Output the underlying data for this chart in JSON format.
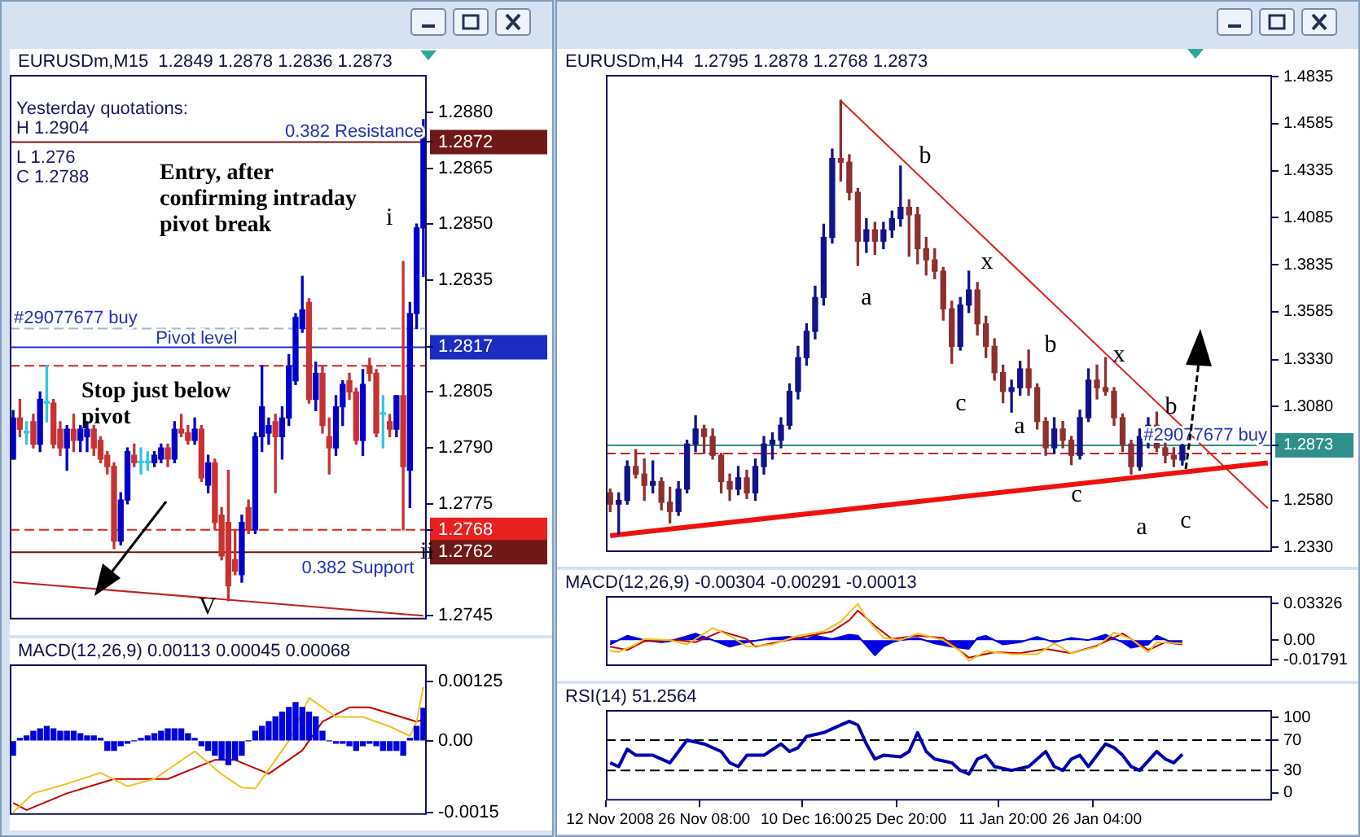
{
  "chart_data": [
    {
      "type": "candlestick",
      "title": "EURUSDm,M15  1.2849 1.2878 1.2836 1.2873",
      "categories": [
        null,
        null,
        null,
        null,
        null,
        null,
        null,
        null,
        null,
        null,
        null,
        null,
        null,
        null,
        null,
        null,
        null,
        null,
        null,
        null,
        null,
        null,
        null,
        null,
        null,
        null,
        null,
        null,
        null,
        null,
        null,
        null,
        null,
        null,
        null,
        null,
        null,
        null,
        null,
        null,
        null,
        null,
        null,
        null,
        null,
        null,
        null,
        null,
        null,
        null,
        null,
        null,
        null,
        null,
        null,
        null,
        null,
        null,
        null,
        null,
        null,
        null
      ],
      "ohlc": [
        [
          1.2787,
          1.28,
          1.2787,
          1.2798
        ],
        [
          1.2798,
          1.2803,
          1.2793,
          1.2795
        ],
        [
          1.2794,
          1.2797,
          1.2791,
          1.2794
        ],
        [
          1.2797,
          1.2799,
          1.279,
          1.2791
        ],
        [
          1.2791,
          1.2805,
          1.2789,
          1.2803
        ],
        [
          1.2802,
          1.2812,
          1.2797,
          1.2802
        ],
        [
          1.2802,
          1.2803,
          1.279,
          1.2791
        ],
        [
          1.2795,
          1.2797,
          1.2788,
          1.279
        ],
        [
          1.279,
          1.2796,
          1.2784,
          1.2795
        ],
        [
          1.2795,
          1.2799,
          1.2789,
          1.2792
        ],
        [
          1.2792,
          1.2796,
          1.2789,
          1.2795
        ],
        [
          1.2793,
          1.2797,
          1.2789,
          1.2795
        ],
        [
          1.2795,
          1.2796,
          1.2788,
          1.279
        ],
        [
          1.2792,
          1.2793,
          1.2786,
          1.2787
        ],
        [
          1.2788,
          1.2789,
          1.2783,
          1.2785
        ],
        [
          1.2785,
          1.2786,
          1.2763,
          1.2765
        ],
        [
          1.2765,
          1.2778,
          1.2764,
          1.2776
        ],
        [
          1.2776,
          1.279,
          1.2775,
          1.2789
        ],
        [
          1.2788,
          1.2791,
          1.2785,
          1.2786
        ],
        [
          1.2786,
          1.279,
          1.2783,
          1.2786
        ],
        [
          1.2786,
          1.2789,
          1.2784,
          1.2786
        ],
        [
          1.2786,
          1.2789,
          1.2785,
          1.2788
        ],
        [
          1.2787,
          1.2791,
          1.2786,
          1.279
        ],
        [
          1.279,
          1.2791,
          1.2785,
          1.2787
        ],
        [
          1.2787,
          1.2797,
          1.2786,
          1.2795
        ],
        [
          1.2795,
          1.2799,
          1.2793,
          1.2794
        ],
        [
          1.2794,
          1.2796,
          1.2791,
          1.2792
        ],
        [
          1.2792,
          1.2798,
          1.2791,
          1.2795
        ],
        [
          1.2795,
          1.2796,
          1.2781,
          1.2782
        ],
        [
          1.278,
          1.2788,
          1.2778,
          1.2786
        ],
        [
          1.2786,
          1.2787,
          1.2768,
          1.277
        ],
        [
          1.2772,
          1.2774,
          1.276,
          1.2761
        ],
        [
          1.277,
          1.2784,
          1.2749,
          1.2753
        ],
        [
          1.276,
          1.2768,
          1.2756,
          1.2757
        ],
        [
          1.2756,
          1.2772,
          1.2754,
          1.277
        ],
        [
          1.2774,
          1.2776,
          1.2767,
          1.2768
        ],
        [
          1.2768,
          1.2794,
          1.2767,
          1.2793
        ],
        [
          1.2793,
          1.2812,
          1.2789,
          1.2801
        ],
        [
          1.2794,
          1.2798,
          1.2791,
          1.2796
        ],
        [
          1.2797,
          1.2799,
          1.2778,
          1.2793
        ],
        [
          1.2793,
          1.2801,
          1.2787,
          1.2798
        ],
        [
          1.2798,
          1.2815,
          1.2796,
          1.2812
        ],
        [
          1.2808,
          1.2826,
          1.2807,
          1.2825
        ],
        [
          1.2822,
          1.2836,
          1.2821,
          1.2827
        ],
        [
          1.2829,
          1.283,
          1.2802,
          1.2803
        ],
        [
          1.2803,
          1.2813,
          1.28,
          1.281
        ],
        [
          1.281,
          1.2812,
          1.2794,
          1.2796
        ],
        [
          1.2793,
          1.2798,
          1.2783,
          1.279
        ],
        [
          1.279,
          1.2804,
          1.2788,
          1.2801
        ],
        [
          1.2801,
          1.2808,
          1.2796,
          1.2807
        ],
        [
          1.2808,
          1.281,
          1.2803,
          1.2805
        ],
        [
          1.2805,
          1.2806,
          1.2791,
          1.2792
        ],
        [
          1.2792,
          1.2811,
          1.2788,
          1.2807
        ],
        [
          1.2812,
          1.2814,
          1.2808,
          1.281
        ],
        [
          1.281,
          1.2811,
          1.2793,
          1.2794
        ],
        [
          1.2799,
          1.2804,
          1.279,
          1.2799
        ],
        [
          1.2797,
          1.2799,
          1.2793,
          1.2795
        ],
        [
          1.2795,
          1.2804,
          1.2793,
          1.2804
        ],
        [
          1.2804,
          1.284,
          1.2768,
          1.2785
        ],
        [
          1.2784,
          1.2829,
          1.2774,
          1.2826
        ],
        [
          1.2826,
          1.285,
          1.2822,
          1.2849
        ],
        [
          1.2849,
          1.2878,
          1.2836,
          1.2873
        ]
      ],
      "colors": [
        "#0000c8",
        "#c83232",
        "#30c8e0",
        "#c83232",
        "#0000c8",
        "#30c8e0",
        "#c83232",
        "#c83232",
        "#0000c8",
        "#c83232",
        "#0000c8",
        "#0000c8",
        "#c83232",
        "#c83232",
        "#c83232",
        "#c83232",
        "#0000c8",
        "#0000c8",
        "#c83232",
        "#30c8e0",
        "#30c8e0",
        "#0000c8",
        "#0000c8",
        "#c83232",
        "#0000c8",
        "#c83232",
        "#c83232",
        "#0000c8",
        "#c83232",
        "#0000c8",
        "#c83232",
        "#c83232",
        "#c83232",
        "#c83232",
        "#0000c8",
        "#c83232",
        "#0000c8",
        "#0000c8",
        "#0000c8",
        "#c83232",
        "#0000c8",
        "#0000c8",
        "#0000c8",
        "#0000c8",
        "#c83232",
        "#0000c8",
        "#c83232",
        "#c83232",
        "#0000c8",
        "#0000c8",
        "#c83232",
        "#c83232",
        "#0000c8",
        "#c83232",
        "#c83232",
        "#30c8e0",
        "#c83232",
        "#0000c8",
        "#c83232",
        "#0000c8",
        "#0000c8",
        "#0000c8"
      ],
      "series": [
        {
          "type": "line",
          "color": "#c02020",
          "values": [
            1.2754,
            null,
            null,
            null,
            null,
            null,
            null,
            null,
            null,
            null,
            null,
            null,
            null,
            null,
            null,
            null,
            null,
            null,
            null,
            null,
            null,
            null,
            null,
            null,
            null,
            null,
            null,
            null,
            null,
            null,
            null,
            null,
            null,
            null,
            null,
            null,
            null,
            null,
            null,
            null,
            null,
            null,
            null,
            null,
            null,
            null,
            null,
            null,
            null,
            null,
            null,
            null,
            null,
            null,
            null,
            null,
            null,
            null,
            null,
            null,
            null,
            1.2745
          ]
        }
      ],
      "ylim": [
        1.2744,
        1.289
      ],
      "yticks": [
        1.2745,
        1.2775,
        {
          "value": 1.279,
          "label": "1.2790"
        },
        1.2805,
        1.2835,
        {
          "value": 1.285,
          "label": "1.2850"
        },
        1.2865,
        {
          "value": 1.288,
          "label": "1.2880"
        },
        1.2872,
        1.2817,
        1.2768,
        1.2762
      ],
      "ref_lines": [
        {
          "axis": "y",
          "value": 1.2872,
          "label": "0.382 Resistance",
          "color": "#701818",
          "line_style": "solid"
        },
        {
          "axis": "y",
          "value": 1.2822,
          "label": "#29077677 buy",
          "color": "#a8b8c8",
          "line_style": "dashed"
        },
        {
          "axis": "y",
          "value": 1.2817,
          "label": "Pivot level",
          "color": "#1c2cc0",
          "line_style": "solid"
        },
        {
          "axis": "y",
          "value": 1.2812,
          "color": "#d02020",
          "line_style": "dashed"
        },
        {
          "axis": "y",
          "value": 1.2768,
          "color": "#e82020",
          "line_style": "dashed"
        },
        {
          "axis": "y",
          "value": 1.2762,
          "label": "0.382 Support",
          "color": "#701818",
          "line_style": "solid"
        }
      ],
      "annotations": [
        "Yesterday quotations:",
        "H 1.2904",
        "L 1.276",
        "C 1.2788",
        "Entry, after confirming intraday pivot break",
        "Stop just below pivot",
        "i",
        "ii",
        "V"
      ],
      "grid": false,
      "tick_labels": "y"
    },
    {
      "type": "bar",
      "title": "MACD(12,26,9) 0.00113 0.00045 0.00068",
      "categories": [
        null,
        null,
        null,
        null,
        null,
        null,
        null,
        null,
        null,
        null,
        null,
        null,
        null,
        null,
        null,
        null,
        null,
        null,
        null,
        null,
        null,
        null,
        null,
        null,
        null,
        null,
        null,
        null,
        null,
        null,
        null,
        null,
        null,
        null,
        null,
        null,
        null,
        null,
        null,
        null,
        null,
        null,
        null,
        null,
        null,
        null,
        null,
        null,
        null,
        null,
        null,
        null,
        null,
        null,
        null,
        null,
        null,
        null,
        null,
        null,
        null,
        null
      ],
      "series": [
        {
          "type": "bar",
          "color": "#0000e0",
          "values": [
            -0.0003,
            5e-05,
            0.0001,
            0.0002,
            0.00025,
            0.0003,
            0.00025,
            0.0002,
            0.0002,
            0.0002,
            0.00015,
            0.0001,
            0.0001,
            5e-05,
            -0.0002,
            -0.0002,
            -0.0001,
            -5e-05,
            0,
            5e-05,
            0.0001,
            0.00015,
            0.0002,
            0.00025,
            0.00025,
            0.00025,
            0.00015,
            5e-05,
            -0.0001,
            -0.0002,
            -0.0003,
            -0.0004,
            -0.0005,
            -0.0004,
            -0.0003,
            0,
            0.0002,
            0.0003,
            0.0004,
            0.0005,
            0.0006,
            0.0007,
            0.0008,
            0.0007,
            0.0006,
            0.0005,
            0.0002,
            0,
            -5e-05,
            -5e-05,
            -0.0001,
            -0.0002,
            -0.0001,
            -5e-05,
            -0.0001,
            -0.0002,
            -0.0002,
            -0.0002,
            -0.0003,
            5e-05,
            0.0003,
            0.00068
          ]
        },
        {
          "type": "line",
          "color": "#f0c020",
          "values": [
            -0.0015,
            null,
            null,
            -0.0011,
            null,
            null,
            null,
            null,
            -0.0009,
            null,
            null,
            null,
            null,
            -0.00067,
            null,
            null,
            null,
            -0.00095,
            null,
            null,
            null,
            -0.0008,
            null,
            null,
            null,
            null,
            null,
            -0.00022,
            null,
            null,
            null,
            -0.0007,
            null,
            null,
            -0.00098,
            null,
            -0.001,
            null,
            null,
            -0.0004,
            null,
            0,
            null,
            null,
            0.0009,
            null,
            null,
            null,
            0.0005,
            null,
            null,
            null,
            0.0005,
            null,
            null,
            null,
            0.0003,
            null,
            null,
            0.0001,
            0.0004,
            0.00113
          ]
        },
        {
          "type": "line",
          "color": "#c00000",
          "values": [
            -0.0013,
            null,
            -0.00145,
            null,
            null,
            null,
            null,
            null,
            -0.0011,
            null,
            null,
            null,
            null,
            null,
            null,
            -0.0008,
            null,
            null,
            null,
            null,
            null,
            null,
            null,
            -0.0008,
            null,
            null,
            null,
            null,
            null,
            null,
            -0.0004,
            null,
            null,
            -0.0004,
            null,
            null,
            null,
            null,
            -0.00069,
            null,
            null,
            null,
            null,
            -0.0002,
            null,
            null,
            0.0004,
            null,
            null,
            null,
            0.0007,
            null,
            null,
            0.0007,
            null,
            null,
            null,
            null,
            null,
            null,
            0.0004,
            0.00045
          ]
        }
      ],
      "ylim": [
        -0.00155,
        0.0016
      ],
      "yticks": [
        0.00125,
        {
          "value": 0,
          "label": "0.00"
        },
        -0.0015
      ],
      "grid": false,
      "tick_labels": "y"
    },
    {
      "type": "candlestick",
      "title": "EURUSDm,H4  1.2795 1.2878 1.2768 1.2873",
      "categories": [
        null,
        null,
        null,
        null,
        null,
        null,
        null,
        null,
        null,
        null,
        null,
        null,
        null,
        null,
        null,
        null,
        null,
        null,
        null,
        null,
        null,
        null,
        null,
        null,
        null,
        null,
        null,
        null,
        null,
        null,
        null,
        null,
        null,
        null,
        null,
        null,
        null,
        null,
        null,
        null,
        null,
        null,
        null,
        null,
        null,
        null,
        null,
        null,
        null,
        null,
        null,
        null,
        null,
        null,
        null,
        null,
        null,
        null,
        null,
        null,
        null,
        null,
        null,
        null,
        null,
        null,
        null,
        null,
        null,
        null,
        null,
        null,
        null,
        null,
        null,
        null,
        null,
        null
      ],
      "ohlc": [
        [
          1.262,
          1.264,
          1.252,
          1.256
        ],
        [
          1.256,
          1.262,
          1.24,
          1.258
        ],
        [
          1.258,
          1.279,
          1.256,
          1.276
        ],
        [
          1.276,
          1.285,
          1.27,
          1.272
        ],
        [
          1.272,
          1.28,
          1.258,
          1.266
        ],
        [
          1.266,
          1.279,
          1.262,
          1.268
        ],
        [
          1.268,
          1.27,
          1.253,
          1.257
        ],
        [
          1.257,
          1.265,
          1.246,
          1.252
        ],
        [
          1.252,
          1.268,
          1.25,
          1.264
        ],
        [
          1.264,
          1.29,
          1.262,
          1.288
        ],
        [
          1.288,
          1.303,
          1.284,
          1.296
        ],
        [
          1.296,
          1.298,
          1.283,
          1.292
        ],
        [
          1.292,
          1.296,
          1.28,
          1.282
        ],
        [
          1.282,
          1.283,
          1.262,
          1.268
        ],
        [
          1.268,
          1.272,
          1.258,
          1.264
        ],
        [
          1.264,
          1.276,
          1.261,
          1.27
        ],
        [
          1.27,
          1.274,
          1.259,
          1.262
        ],
        [
          1.262,
          1.28,
          1.258,
          1.276
        ],
        [
          1.276,
          1.292,
          1.272,
          1.288
        ],
        [
          1.288,
          1.294,
          1.28,
          1.29
        ],
        [
          1.29,
          1.302,
          1.286,
          1.298
        ],
        [
          1.298,
          1.32,
          1.296,
          1.316
        ],
        [
          1.316,
          1.34,
          1.312,
          1.334
        ],
        [
          1.334,
          1.352,
          1.33,
          1.348
        ],
        [
          1.348,
          1.372,
          1.344,
          1.366
        ],
        [
          1.366,
          1.405,
          1.362,
          1.398
        ],
        [
          1.398,
          1.445,
          1.395,
          1.44
        ],
        [
          1.44,
          1.471,
          1.428,
          1.438
        ],
        [
          1.438,
          1.442,
          1.418,
          1.422
        ],
        [
          1.422,
          1.424,
          1.383,
          1.396
        ],
        [
          1.396,
          1.408,
          1.39,
          1.402
        ],
        [
          1.402,
          1.406,
          1.389,
          1.396
        ],
        [
          1.396,
          1.406,
          1.392,
          1.402
        ],
        [
          1.402,
          1.412,
          1.398,
          1.408
        ],
        [
          1.408,
          1.436,
          1.404,
          1.414
        ],
        [
          1.414,
          1.418,
          1.388,
          1.41
        ],
        [
          1.41,
          1.414,
          1.384,
          1.392
        ],
        [
          1.392,
          1.398,
          1.378,
          1.386
        ],
        [
          1.386,
          1.392,
          1.376,
          1.38
        ],
        [
          1.38,
          1.382,
          1.354,
          1.36
        ],
        [
          1.36,
          1.364,
          1.331,
          1.34
        ],
        [
          1.34,
          1.366,
          1.338,
          1.362
        ],
        [
          1.362,
          1.38,
          1.358,
          1.37
        ],
        [
          1.37,
          1.374,
          1.346,
          1.352
        ],
        [
          1.352,
          1.356,
          1.334,
          1.34
        ],
        [
          1.34,
          1.344,
          1.322,
          1.326
        ],
        [
          1.326,
          1.33,
          1.31,
          1.316
        ],
        [
          1.316,
          1.322,
          1.305,
          1.318
        ],
        [
          1.318,
          1.332,
          1.314,
          1.328
        ],
        [
          1.328,
          1.338,
          1.314,
          1.318
        ],
        [
          1.318,
          1.32,
          1.296,
          1.3
        ],
        [
          1.3,
          1.302,
          1.282,
          1.286
        ],
        [
          1.286,
          1.302,
          1.283,
          1.296
        ],
        [
          1.296,
          1.3,
          1.286,
          1.29
        ],
        [
          1.29,
          1.292,
          1.277,
          1.282
        ],
        [
          1.282,
          1.306,
          1.28,
          1.302
        ],
        [
          1.302,
          1.328,
          1.3,
          1.322
        ],
        [
          1.322,
          1.33,
          1.312,
          1.318
        ],
        [
          1.318,
          1.334,
          1.314,
          1.316
        ],
        [
          1.316,
          1.318,
          1.298,
          1.302
        ],
        [
          1.302,
          1.304,
          1.284,
          1.288
        ],
        [
          1.288,
          1.29,
          1.272,
          1.276
        ],
        [
          1.276,
          1.296,
          1.274,
          1.292
        ],
        [
          1.292,
          1.302,
          1.286,
          1.298
        ],
        [
          1.298,
          1.305,
          1.284,
          1.286
        ],
        [
          1.286,
          1.29,
          1.278,
          1.282
        ],
        [
          1.282,
          1.286,
          1.276,
          1.28
        ],
        [
          1.2795,
          1.2878,
          1.2768,
          1.2873
        ],
        null,
        null,
        null,
        null,
        null,
        null,
        null,
        null,
        null,
        null
      ],
      "colors": [
        "#8c3030",
        "#12128a",
        "#12128a",
        "#8c3030",
        "#8c3030",
        "#12128a",
        "#8c3030",
        "#8c3030",
        "#12128a",
        "#12128a",
        "#12128a",
        "#8c3030",
        "#8c3030",
        "#8c3030",
        "#8c3030",
        "#12128a",
        "#8c3030",
        "#12128a",
        "#12128a",
        "#12128a",
        "#12128a",
        "#12128a",
        "#12128a",
        "#12128a",
        "#12128a",
        "#12128a",
        "#12128a",
        "#8c3030",
        "#8c3030",
        "#8c3030",
        "#12128a",
        "#8c3030",
        "#12128a",
        "#12128a",
        "#12128a",
        "#8c3030",
        "#8c3030",
        "#8c3030",
        "#8c3030",
        "#8c3030",
        "#8c3030",
        "#12128a",
        "#12128a",
        "#8c3030",
        "#8c3030",
        "#8c3030",
        "#8c3030",
        "#12128a",
        "#12128a",
        "#8c3030",
        "#8c3030",
        "#8c3030",
        "#12128a",
        "#8c3030",
        "#8c3030",
        "#12128a",
        "#12128a",
        "#8c3030",
        "#8c3030",
        "#8c3030",
        "#8c3030",
        "#8c3030",
        "#12128a",
        "#12128a",
        "#8c3030",
        "#8c3030",
        "#8c3030",
        "#12128a",
        null,
        null,
        null,
        null,
        null,
        null,
        null,
        null,
        null,
        null
      ],
      "series": [
        {
          "type": "line",
          "color": "#ee1111",
          "values": [
            1.2392,
            null,
            null,
            null,
            null,
            null,
            null,
            null,
            null,
            null,
            null,
            null,
            null,
            null,
            null,
            null,
            null,
            null,
            null,
            null,
            null,
            null,
            null,
            null,
            null,
            null,
            null,
            null,
            null,
            null,
            null,
            null,
            null,
            null,
            null,
            null,
            null,
            null,
            null,
            null,
            null,
            null,
            null,
            null,
            null,
            null,
            null,
            null,
            null,
            null,
            null,
            null,
            null,
            null,
            null,
            null,
            null,
            null,
            null,
            null,
            null,
            null,
            null,
            null,
            null,
            null,
            null,
            null,
            null,
            null,
            null,
            null,
            null,
            null,
            null,
            null,
            null,
            1.278
          ]
        },
        {
          "type": "line",
          "color": "#dd2222",
          "values": [
            null,
            null,
            null,
            null,
            null,
            null,
            null,
            null,
            null,
            null,
            null,
            null,
            null,
            null,
            null,
            null,
            null,
            null,
            null,
            null,
            null,
            null,
            null,
            null,
            null,
            null,
            null,
            1.4707,
            null,
            null,
            null,
            null,
            null,
            null,
            null,
            null,
            null,
            null,
            null,
            null,
            null,
            null,
            null,
            null,
            null,
            null,
            null,
            null,
            null,
            null,
            null,
            null,
            null,
            null,
            null,
            null,
            null,
            null,
            null,
            null,
            null,
            null,
            null,
            null,
            null,
            null,
            null,
            null,
            null,
            null,
            null,
            null,
            null,
            null,
            null,
            null,
            null,
            1.2538
          ]
        }
      ],
      "ylim": [
        1.2305,
        1.4845
      ],
      "yticks": [
        1.4835,
        1.4585,
        1.4335,
        1.4085,
        1.3835,
        1.3585,
        {
          "value": 1.333,
          "label": "1.3330"
        },
        {
          "value": 1.308,
          "label": "1.3080"
        },
        {
          "value": 1.258,
          "label": "1.2580"
        },
        {
          "value": 1.233,
          "label": "1.2330"
        },
        1.2873
      ],
      "ref_lines": [
        {
          "axis": "y",
          "value": 1.2873,
          "label": "#29077677 buy",
          "color": "#2f8f8a",
          "line_style": "solid"
        },
        {
          "axis": "y",
          "value": 1.283,
          "color": "#d02020",
          "line_style": "dashed"
        }
      ],
      "annotations": [
        "a",
        "b",
        "x",
        "c",
        "b",
        "a",
        "x",
        "c",
        "b",
        "a",
        "c"
      ],
      "grid": false,
      "tick_labels": "y"
    },
    {
      "type": "area",
      "title": "MACD(12,26,9) -0.00304 -0.00291 -0.00013",
      "categories": [
        null,
        null,
        null,
        null,
        null,
        null,
        null,
        null,
        null,
        null,
        null,
        null,
        null,
        null,
        null,
        null,
        null,
        null,
        null,
        null,
        null,
        null,
        null,
        null,
        null,
        null,
        null,
        null,
        null,
        null,
        null,
        null,
        null,
        null,
        null,
        null,
        null,
        null,
        null,
        null,
        null,
        null,
        null,
        null,
        null,
        null,
        null,
        null,
        null,
        null,
        null,
        null,
        null,
        null,
        null,
        null,
        null,
        null,
        null,
        null,
        null,
        null,
        null,
        null,
        null,
        null,
        null,
        null,
        null,
        null,
        null,
        null,
        null,
        null,
        null,
        null,
        null,
        null
      ],
      "series": [
        {
          "type": "area",
          "color": "#0000e0",
          "values": [
            -0.004,
            null,
            0.004,
            null,
            0,
            null,
            -0.002,
            -0.001,
            null,
            null,
            0.006,
            null,
            0,
            null,
            -0.006,
            null,
            -0.002,
            null,
            null,
            0.002,
            null,
            0.003,
            null,
            0.001,
            0.004,
            null,
            0.001,
            null,
            0.005,
            0.004,
            -0.005,
            -0.014,
            -0.006,
            -0.002,
            0,
            null,
            0.002,
            null,
            -0.003,
            null,
            -0.006,
            null,
            -0.008,
            0.002,
            0.004,
            null,
            -0.004,
            null,
            -0.002,
            null,
            0.003,
            null,
            -0.002,
            null,
            0.002,
            null,
            0,
            null,
            0.005,
            null,
            -0.002,
            -0.007,
            null,
            -0.004,
            0.004,
            null,
            -0.003,
            -0.00304,
            null,
            null,
            null,
            null,
            null,
            null,
            null,
            null,
            null,
            null
          ]
        },
        {
          "type": "line",
          "color": "#f0c020",
          "values": [
            -0.01,
            -0.011,
            null,
            -0.004,
            0.001,
            null,
            null,
            0,
            null,
            -0.004,
            null,
            null,
            0.011,
            null,
            0.004,
            null,
            -0.006,
            null,
            null,
            -0.004,
            null,
            null,
            0.004,
            null,
            null,
            0.008,
            null,
            0.017,
            null,
            0.033,
            0.02,
            null,
            0.002,
            null,
            0,
            null,
            0.006,
            null,
            null,
            0,
            null,
            -0.01,
            -0.019,
            null,
            -0.01,
            null,
            null,
            -0.013,
            null,
            null,
            -0.013,
            null,
            -0.003,
            null,
            -0.012,
            null,
            null,
            -0.006,
            null,
            0.007,
            null,
            0.001,
            null,
            -0.011,
            -0.002,
            null,
            null,
            -0.003,
            null,
            null,
            null,
            null,
            null,
            null,
            null,
            null,
            null,
            null
          ]
        },
        {
          "type": "line",
          "color": "#c00000",
          "values": [
            -0.006,
            null,
            -0.009,
            null,
            -0.001,
            null,
            null,
            null,
            0,
            null,
            -0.002,
            null,
            null,
            0.008,
            null,
            null,
            0.001,
            -0.006,
            null,
            null,
            null,
            null,
            0.002,
            null,
            null,
            null,
            0.008,
            null,
            0.018,
            0.027,
            null,
            0.013,
            null,
            0.001,
            null,
            null,
            0.004,
            null,
            null,
            0.002,
            null,
            null,
            -0.016,
            null,
            null,
            -0.011,
            null,
            null,
            -0.012,
            null,
            null,
            -0.008,
            null,
            null,
            -0.012,
            null,
            null,
            -0.005,
            null,
            null,
            0.006,
            null,
            null,
            -0.009,
            null,
            -0.002,
            null,
            -0.004,
            null,
            null,
            null,
            null,
            null,
            null,
            null,
            null,
            null,
            null
          ]
        }
      ],
      "ylim": [
        -0.0237,
        0.0403
      ],
      "yticks": [
        0.03326,
        {
          "value": 0,
          "label": "0.00"
        },
        -0.01791
      ],
      "grid": false,
      "tick_labels": "y"
    },
    {
      "type": "line",
      "title": "RSI(14) 51.2564",
      "categories": [
        "12 Nov 2008",
        null,
        null,
        null,
        null,
        null,
        null,
        null,
        null,
        null,
        null,
        "26 Nov 08:00",
        null,
        null,
        null,
        null,
        null,
        null,
        null,
        null,
        null,
        null,
        null,
        "10 Dec 16:00",
        null,
        null,
        null,
        null,
        null,
        null,
        null,
        null,
        null,
        null,
        "25 Dec 20:00",
        null,
        null,
        null,
        null,
        null,
        null,
        null,
        null,
        null,
        null,
        null,
        "11 Jan 20:00",
        null,
        null,
        null,
        null,
        null,
        null,
        null,
        null,
        null,
        null,
        "26 Jan 04:00",
        null,
        null,
        null,
        null,
        null,
        null,
        null,
        null,
        null,
        null,
        null,
        null,
        null,
        null,
        null,
        null,
        null,
        null,
        null,
        null
      ],
      "series": [
        {
          "color": "#0000b0",
          "values": [
            40,
            35,
            58,
            50,
            null,
            50,
            null,
            40,
            55,
            70,
            null,
            65,
            null,
            55,
            40,
            35,
            50,
            null,
            50,
            null,
            65,
            55,
            60,
            75,
            null,
            80,
            85,
            null,
            95,
            90,
            65,
            45,
            50,
            null,
            48,
            55,
            80,
            55,
            45,
            null,
            40,
            30,
            25,
            45,
            50,
            35,
            null,
            30,
            null,
            35,
            null,
            55,
            35,
            30,
            45,
            50,
            35,
            null,
            65,
            60,
            50,
            35,
            30,
            null,
            55,
            45,
            40,
            51.2564,
            null,
            null,
            null,
            null,
            null,
            null,
            null,
            null,
            null,
            null
          ]
        }
      ],
      "ylim": [
        -10,
        110
      ],
      "yticks": [
        100,
        70,
        30,
        0
      ],
      "ref_lines": [
        {
          "axis": "y",
          "value": 70,
          "line_style": "dashed"
        },
        {
          "axis": "y",
          "value": 30,
          "line_style": "dashed"
        }
      ],
      "grid": false
    }
  ]
}
